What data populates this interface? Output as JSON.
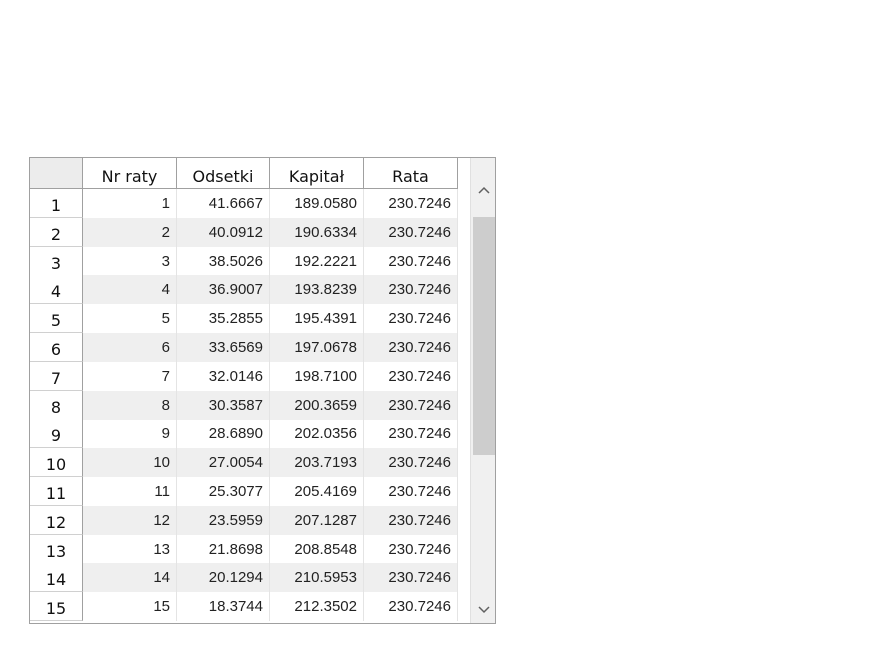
{
  "table": {
    "columns": [
      "Nr raty",
      "Odsetki",
      "Kapitał",
      "Rata"
    ],
    "rows": [
      {
        "header": "1",
        "values": [
          "1",
          "41.6667",
          "189.0580",
          "230.7246"
        ]
      },
      {
        "header": "2",
        "values": [
          "2",
          "40.0912",
          "190.6334",
          "230.7246"
        ]
      },
      {
        "header": "3",
        "values": [
          "3",
          "38.5026",
          "192.2221",
          "230.7246"
        ]
      },
      {
        "header": "4",
        "values": [
          "4",
          "36.9007",
          "193.8239",
          "230.7246"
        ]
      },
      {
        "header": "5",
        "values": [
          "5",
          "35.2855",
          "195.4391",
          "230.7246"
        ]
      },
      {
        "header": "6",
        "values": [
          "6",
          "33.6569",
          "197.0678",
          "230.7246"
        ]
      },
      {
        "header": "7",
        "values": [
          "7",
          "32.0146",
          "198.7100",
          "230.7246"
        ]
      },
      {
        "header": "8",
        "values": [
          "8",
          "30.3587",
          "200.3659",
          "230.7246"
        ]
      },
      {
        "header": "9",
        "values": [
          "9",
          "28.6890",
          "202.0356",
          "230.7246"
        ]
      },
      {
        "header": "10",
        "values": [
          "10",
          "27.0054",
          "203.7193",
          "230.7246"
        ]
      },
      {
        "header": "11",
        "values": [
          "11",
          "25.3077",
          "205.4169",
          "230.7246"
        ]
      },
      {
        "header": "12",
        "values": [
          "12",
          "23.5959",
          "207.1287",
          "230.7246"
        ]
      },
      {
        "header": "13",
        "values": [
          "13",
          "21.8698",
          "208.8548",
          "230.7246"
        ]
      },
      {
        "header": "14",
        "values": [
          "14",
          "20.1294",
          "210.5953",
          "230.7246"
        ]
      },
      {
        "header": "15",
        "values": [
          "15",
          "18.3744",
          "212.3502",
          "230.7246"
        ]
      }
    ]
  },
  "scrollbar": {
    "up_icon": "chevron-up-icon",
    "down_icon": "chevron-down-icon",
    "thumb_color": "#cdcdcd"
  },
  "colors": {
    "grid_border": "#a0a0a0",
    "alt_row": "#efefef"
  }
}
